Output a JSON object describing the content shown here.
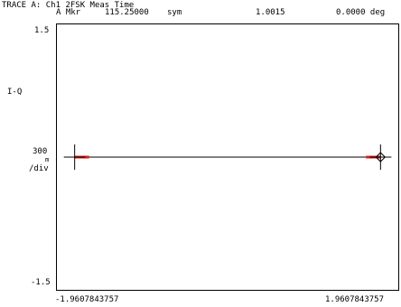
{
  "header": {
    "trace_title": "TRACE A: Ch1 2FSK Meas Time",
    "marker_label": "A Mkr",
    "marker_position": "115.25000",
    "marker_unit": "sym",
    "marker_magnitude": "1.0015",
    "marker_phase": "0.0000 deg"
  },
  "axis": {
    "y_top": "1.5",
    "y_bottom": "-1.5",
    "y_name": "I-Q",
    "scale_value": "300",
    "scale_prefix": "m",
    "scale_per": "/div",
    "x_left": "-1.9607843757",
    "x_right": "1.9607843757"
  },
  "colors": {
    "trace": "#000000",
    "symbol_highlight": "#e01b1b"
  },
  "chart_data": {
    "type": "line",
    "points": [
      {
        "x": -1.9607843757,
        "y": 0
      },
      {
        "x": 1.9607843757,
        "y": 0
      }
    ],
    "marker": {
      "x": 1.9607843757,
      "y": 0
    },
    "xlim": [
      -2.2,
      2.2
    ],
    "ylim": [
      -1.5,
      1.5
    ]
  }
}
